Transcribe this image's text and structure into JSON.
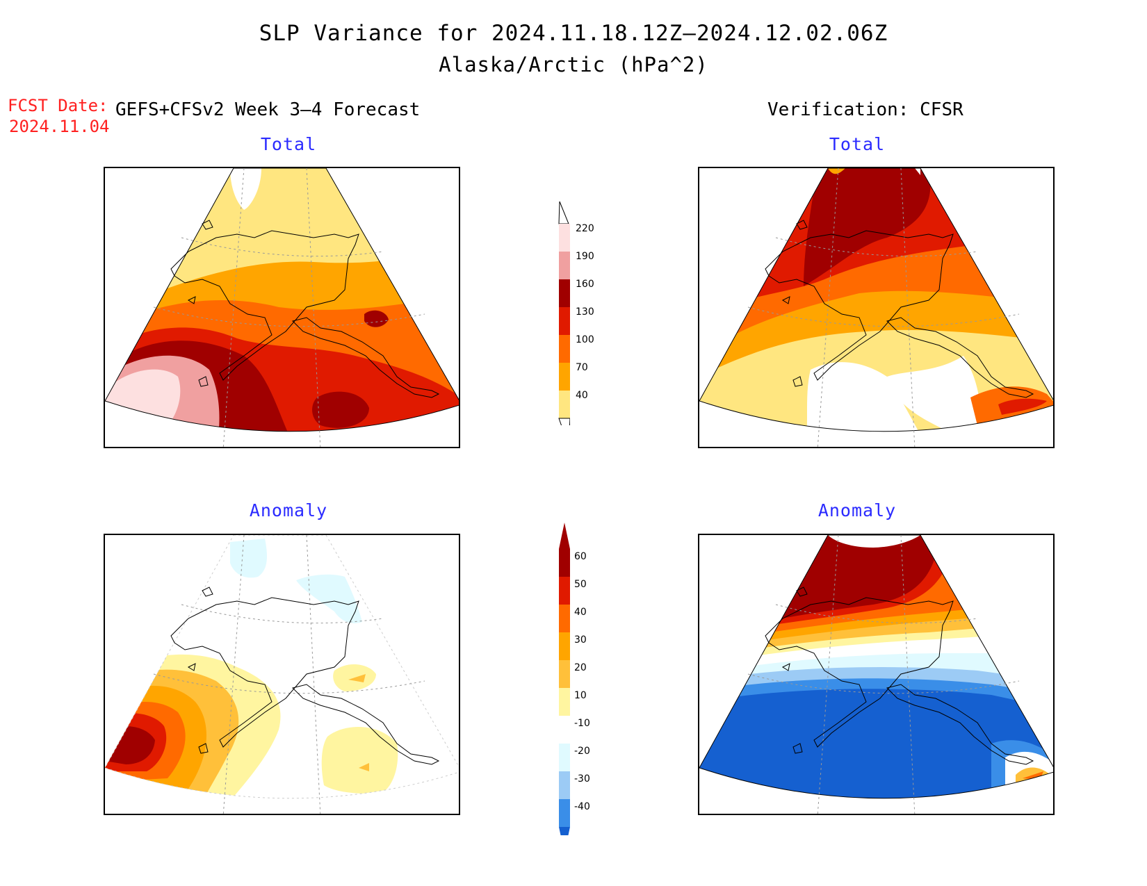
{
  "title": "SLP Variance for 2024.11.18.12Z–2024.12.02.06Z",
  "subtitle": "Alaska/Arctic (hPa^2)",
  "fcst_label": "FCST Date:",
  "fcst_date": "2024.11.04",
  "left_header": "GEFS+CFSv2 Week 3–4 Forecast",
  "right_header": "Verification: CFSR",
  "panels": {
    "top_left": "Total",
    "top_right": "Total",
    "bottom_left": "Anomaly",
    "bottom_right": "Anomaly"
  },
  "colorbar_total": {
    "labels": [
      "220",
      "190",
      "160",
      "130",
      "100",
      "70",
      "40"
    ],
    "colors": [
      "#fde0e0",
      "#f0a0a0",
      "#a00000",
      "#e01a00",
      "#ff6a00",
      "#ffa500",
      "#ffe680"
    ]
  },
  "colorbar_anomaly": {
    "labels": [
      "60",
      "50",
      "40",
      "30",
      "20",
      "10",
      "-10",
      "-20",
      "-30",
      "-40"
    ],
    "colors": [
      "#a00000",
      "#e01a00",
      "#ff6a00",
      "#ffa500",
      "#ffc03a",
      "#fff5a0",
      "#ffffff",
      "#e0faff",
      "#9ccbf5",
      "#3a8ee8",
      "#1560d0"
    ]
  }
}
